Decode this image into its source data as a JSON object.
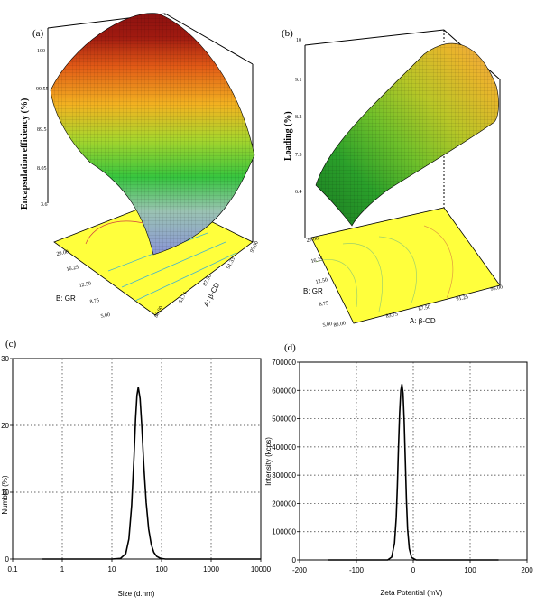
{
  "colors": {
    "floor": "#ffff3c",
    "dls_line": "#000000"
  },
  "chart_data": [
    {
      "panel": "(a)",
      "type": "surface3d",
      "zlabel": "Encapsulation efficiency (%)",
      "xlabel": "A: β-CD",
      "ylabel": "B: GR",
      "z_ticks": [
        "3.6",
        "8.05",
        "89.5",
        "99.55",
        "100"
      ],
      "x_ticks": [
        "80.00",
        "83.71",
        "87.50",
        "91.33",
        "95.00"
      ],
      "y_ticks": [
        "5.00",
        "8.75",
        "12.50",
        "16.25",
        "20.00"
      ],
      "colormap": [
        "#8a95d8",
        "#9ac3b2",
        "#36c53e",
        "#a9d52c",
        "#f2b321",
        "#e25a16",
        "#a01a10",
        "#8c1110"
      ]
    },
    {
      "panel": "(b)",
      "type": "surface3d",
      "zlabel": "Loading (%)",
      "xlabel": "A: β-CD",
      "ylabel": "B: GR",
      "z_ticks": [
        "6.4",
        "7.3",
        "8.2",
        "9.1",
        "10"
      ],
      "x_ticks": [
        "80.00",
        "83.75",
        "87.50",
        "91.25",
        "95.00"
      ],
      "y_ticks": [
        "5.00",
        "8.75",
        "12.50",
        "16.25",
        "20.00"
      ],
      "colormap": [
        "#1b7a22",
        "#2aa02a",
        "#6fc02a",
        "#b8c627",
        "#e8b52b",
        "#f0a34c"
      ]
    },
    {
      "panel": "(c)",
      "type": "line",
      "xscale": "log",
      "xlabel": "Size (d.nm)",
      "ylabel": "Number (%)",
      "xlim": [
        0.1,
        10000
      ],
      "ylim": [
        0,
        30
      ],
      "x_ticks": [
        "0.1",
        "1",
        "10",
        "100",
        "1000",
        "10000"
      ],
      "y_ticks": [
        "0",
        "10",
        "20",
        "30"
      ],
      "grid": true,
      "series": [
        {
          "x": [
            0.4,
            10,
            15,
            19,
            22,
            25,
            28,
            30,
            32,
            34,
            37,
            40,
            44,
            49,
            55,
            62,
            70,
            80,
            95,
            120,
            10000
          ],
          "y": [
            0,
            0,
            0.1,
            0.8,
            3.0,
            8.0,
            15.5,
            21.0,
            24.5,
            25.7,
            24.0,
            20.0,
            14.0,
            8.5,
            4.5,
            2.2,
            1.0,
            0.4,
            0.1,
            0,
            0
          ]
        }
      ]
    },
    {
      "panel": "(d)",
      "type": "line",
      "xlabel": "Zeta Potential (mV)",
      "ylabel": "Intensity (kcps)",
      "xlim": [
        -200,
        200
      ],
      "ylim": [
        0,
        700000
      ],
      "x_ticks": [
        "-200",
        "-100",
        "0",
        "100",
        "200"
      ],
      "y_ticks": [
        "0",
        "100000",
        "200000",
        "300000",
        "400000",
        "500000",
        "600000",
        "700000"
      ],
      "grid": true,
      "series": [
        {
          "x": [
            -150,
            -45,
            -38,
            -33,
            -30,
            -28,
            -26,
            -24,
            -22,
            -20,
            -18,
            -16,
            -14,
            -12,
            -10,
            -7,
            -3,
            5,
            150
          ],
          "y": [
            0,
            0,
            10000,
            60000,
            150000,
            260000,
            400000,
            520000,
            600000,
            622000,
            590000,
            490000,
            350000,
            210000,
            110000,
            40000,
            8000,
            0,
            0
          ]
        }
      ]
    }
  ]
}
